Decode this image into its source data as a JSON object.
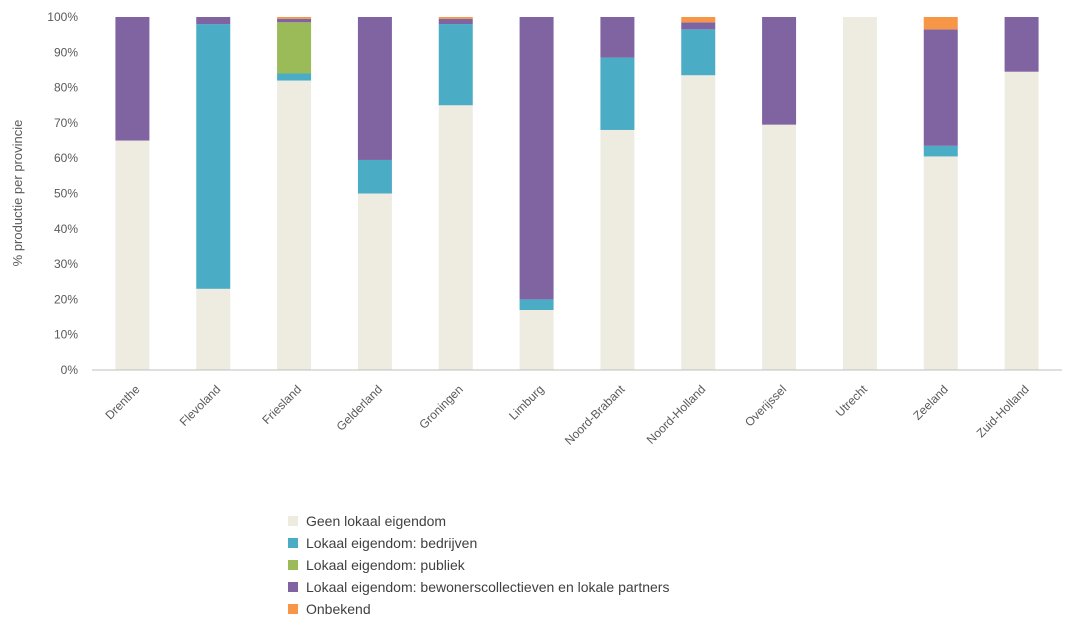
{
  "chart_data": {
    "type": "bar",
    "stacked": true,
    "ylabel": "% productie per provincie",
    "ylim": [
      0,
      100
    ],
    "yticks": [
      "0%",
      "10%",
      "20%",
      "30%",
      "40%",
      "50%",
      "60%",
      "70%",
      "80%",
      "90%",
      "100%"
    ],
    "grid": false,
    "legend_position": "bottom",
    "categories": [
      "Drenthe",
      "Flevoland",
      "Friesland",
      "Gelderland",
      "Groningen",
      "Limburg",
      "Noord-Brabant",
      "Noord-Holland",
      "Overijssel",
      "Utrecht",
      "Zeeland",
      "Zuid-Holland"
    ],
    "series": [
      {
        "name": "Geen lokaal eigendom",
        "color": "#eeece1",
        "values": [
          65,
          23,
          82,
          50,
          75,
          17,
          68,
          83.5,
          69.5,
          100,
          60.5,
          84.5
        ]
      },
      {
        "name": "Lokaal eigendom: bedrijven",
        "color": "#4bacc6",
        "values": [
          0,
          75,
          2,
          9.5,
          23,
          3,
          20.5,
          13,
          0,
          0,
          3,
          0
        ]
      },
      {
        "name": "Lokaal eigendom: publiek",
        "color": "#9bbb59",
        "values": [
          0,
          0,
          14.5,
          0,
          0,
          0,
          0,
          0,
          0,
          0,
          0,
          0
        ]
      },
      {
        "name": "Lokaal eigendom: bewonerscollectieven en lokale partners",
        "color": "#8064a2",
        "values": [
          35,
          2,
          1,
          40.5,
          1.5,
          80,
          11.5,
          2,
          30.5,
          0,
          33,
          15.5
        ]
      },
      {
        "name": "Onbekend",
        "color": "#f79646",
        "values": [
          0,
          0,
          0.5,
          0,
          0.5,
          0,
          0,
          1.5,
          0,
          0,
          3.5,
          0
        ]
      }
    ]
  }
}
